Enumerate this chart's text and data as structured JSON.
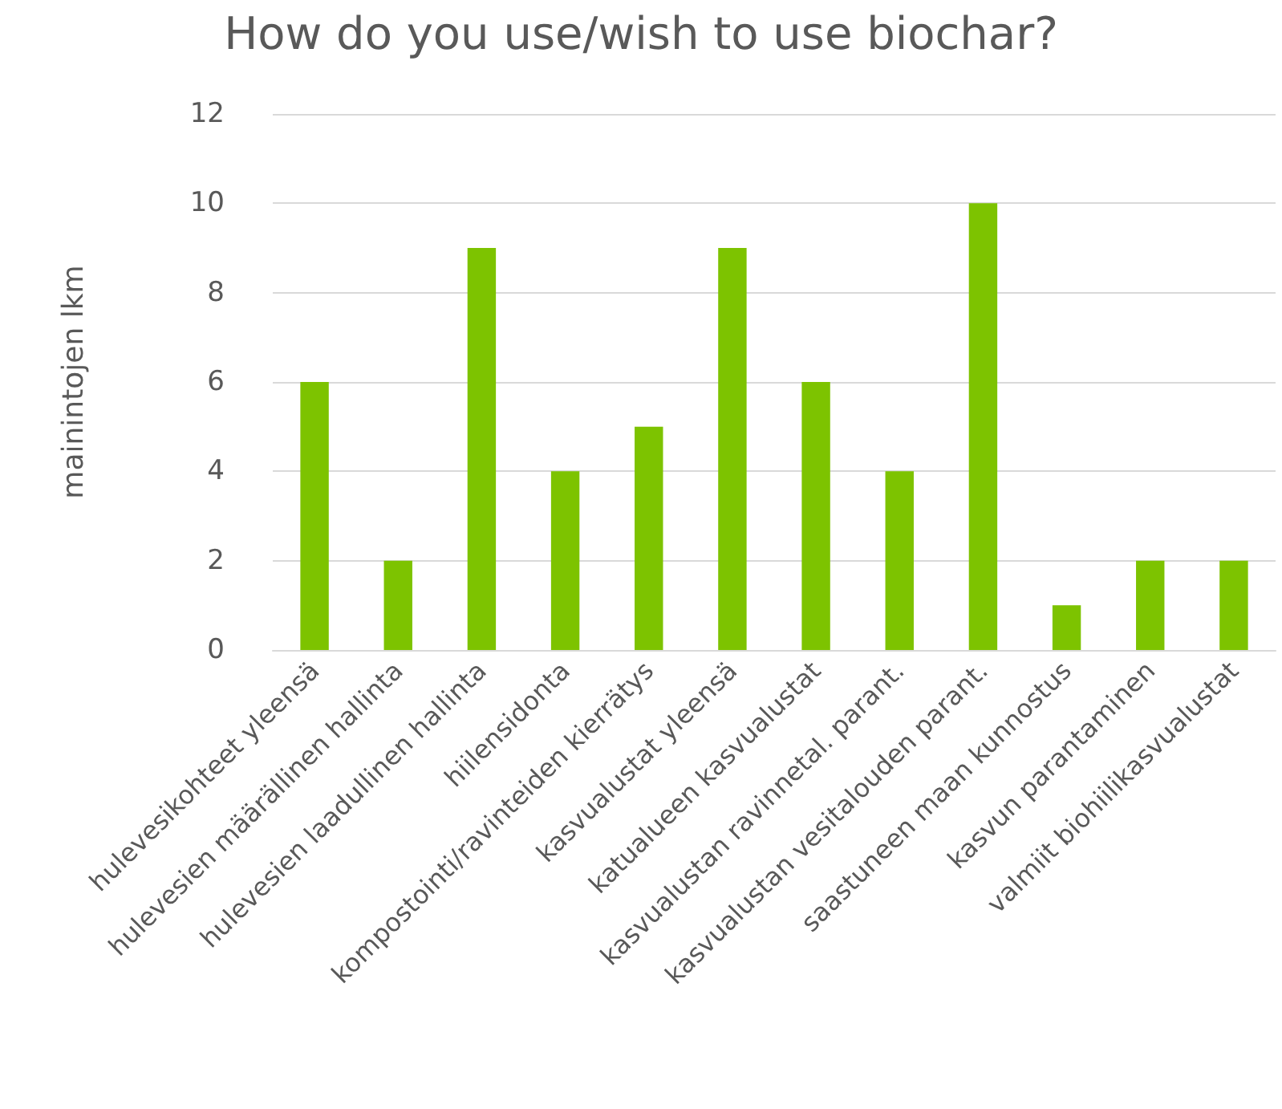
{
  "chart_data": {
    "type": "bar",
    "title": "How do you use/wish to use biochar?",
    "ylabel": "mainintojen lkm",
    "categories": [
      "hulevesikohteet yleensä",
      "hulevesien määrällinen hallinta",
      "hulevesien laadullinen hallinta",
      "hiilensidonta",
      "kompostointi/ravinteiden kierrätys",
      "kasvualustat yleensä",
      "katualueen kasvualustat",
      "kasvualustan ravinnetal. parant.",
      "kasvualustan vesitalouden parant.",
      "saastuneen maan kunnostus",
      "kasvun parantaminen",
      "valmiit biohiilikasvualustat"
    ],
    "values": [
      6,
      2,
      9,
      4,
      5,
      9,
      6,
      4,
      10,
      1,
      2,
      2
    ],
    "color": "#7dc300",
    "ylim": [
      0,
      12
    ],
    "yticks": [
      0,
      2,
      4,
      6,
      8,
      10,
      12
    ],
    "grid": "y"
  }
}
